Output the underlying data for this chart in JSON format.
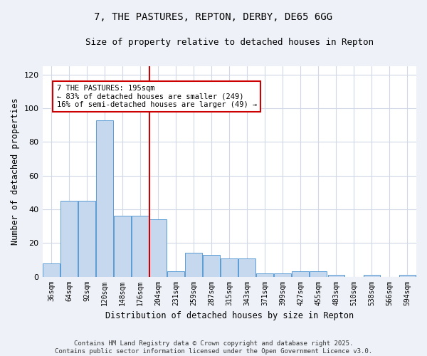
{
  "title_line1": "7, THE PASTURES, REPTON, DERBY, DE65 6GG",
  "title_line2": "Size of property relative to detached houses in Repton",
  "xlabel": "Distribution of detached houses by size in Repton",
  "ylabel": "Number of detached properties",
  "bar_color": "#c5d8ed",
  "bar_edge_color": "#5b9bd5",
  "categories": [
    "36sqm",
    "64sqm",
    "92sqm",
    "120sqm",
    "148sqm",
    "176sqm",
    "204sqm",
    "231sqm",
    "259sqm",
    "287sqm",
    "315sqm",
    "343sqm",
    "371sqm",
    "399sqm",
    "427sqm",
    "455sqm",
    "483sqm",
    "510sqm",
    "538sqm",
    "566sqm",
    "594sqm"
  ],
  "values": [
    8,
    45,
    45,
    93,
    36,
    36,
    34,
    3,
    14,
    13,
    11,
    11,
    2,
    2,
    3,
    3,
    1,
    0,
    1,
    0,
    1
  ],
  "vline_x": 6.0,
  "vline_color": "#cc0000",
  "annotation_text": "7 THE PASTURES: 195sqm\n← 83% of detached houses are smaller (249)\n16% of semi-detached houses are larger (49) →",
  "ylim": [
    0,
    125
  ],
  "yticks": [
    0,
    20,
    40,
    60,
    80,
    100,
    120
  ],
  "footer_text": "Contains HM Land Registry data © Crown copyright and database right 2025.\nContains public sector information licensed under the Open Government Licence v3.0.",
  "background_color": "#eef2f8",
  "plot_bg_color": "#ffffff",
  "grid_color": "#d0d8e8",
  "title_fontsize": 10,
  "subtitle_fontsize": 9,
  "axis_label_fontsize": 8.5,
  "tick_fontsize": 7,
  "annotation_fontsize": 7.5,
  "footer_fontsize": 6.5
}
